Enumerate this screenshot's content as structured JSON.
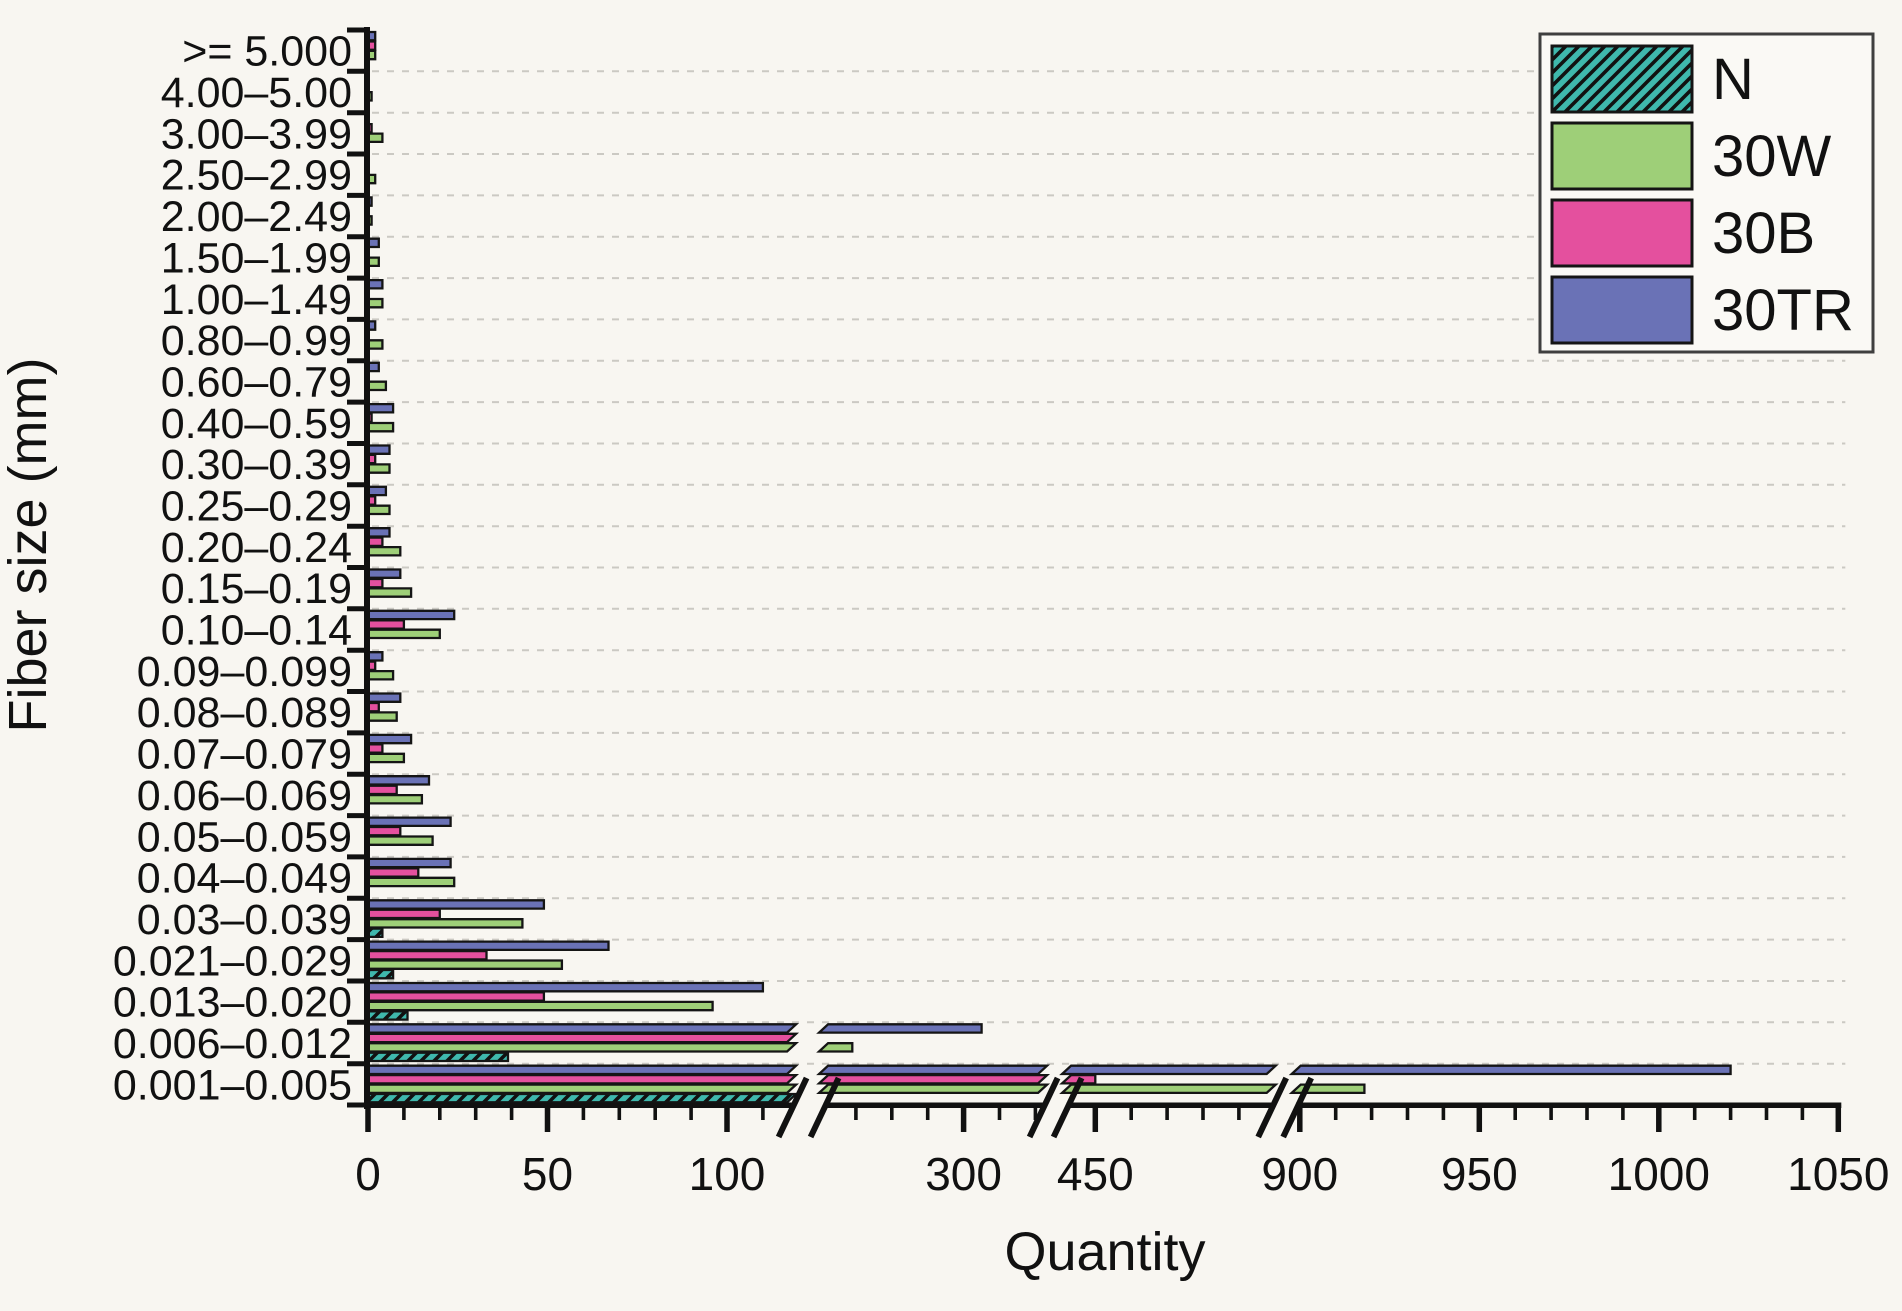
{
  "page": {
    "background": "#f8f6f1"
  },
  "styles": {
    "background": "#f8f6f1",
    "bar_stroke": "#151515",
    "axis_color": "#111111",
    "grid_color": "#cbc9c3",
    "text_color": "#111111",
    "legend_border": "#3f3f3f",
    "legend_fill": "#faf9f5"
  },
  "chart_data": {
    "type": "bar",
    "orientation": "horizontal",
    "xlabel": "Quantity",
    "ylabel": "Fiber size (mm)",
    "grid": "horizontal-dashed",
    "legend_position": "top-right",
    "categories": [
      ">= 5.000",
      "4.00–5.00",
      "3.00–3.99",
      "2.50–2.99",
      "2.00–2.49",
      "1.50–1.99",
      "1.00–1.49",
      "0.80–0.99",
      "0.60–0.79",
      "0.40–0.59",
      "0.30–0.39",
      "0.25–0.29",
      "0.20–0.24",
      "0.15–0.19",
      "0.10–0.14",
      "0.09–0.099",
      "0.08–0.089",
      "0.07–0.079",
      "0.06–0.069",
      "0.05–0.059",
      "0.04–0.049",
      "0.03–0.039",
      "0.021–0.029",
      "0.013–0.020",
      "0.006–0.012",
      "0.001–0.005"
    ],
    "series": [
      {
        "name": "N",
        "color": "#3fb8ad",
        "hatch": true,
        "values": [
          0,
          0,
          0,
          0,
          0,
          0,
          0,
          0,
          0,
          0,
          0,
          0,
          0,
          0,
          0,
          0,
          0,
          0,
          0,
          0,
          0,
          4,
          7,
          11,
          39,
          150
        ]
      },
      {
        "name": "30W",
        "color": "#9ecf78",
        "hatch": false,
        "values": [
          2,
          1,
          4,
          2,
          1,
          3,
          4,
          4,
          5,
          7,
          6,
          6,
          9,
          12,
          20,
          7,
          8,
          10,
          15,
          18,
          24,
          43,
          54,
          96,
          269,
          918
        ]
      },
      {
        "name": "30B",
        "color": "#e4509e",
        "hatch": false,
        "values": [
          2,
          0,
          1,
          0,
          0,
          0,
          0,
          0,
          0,
          1,
          2,
          2,
          4,
          4,
          10,
          2,
          3,
          4,
          8,
          9,
          14,
          20,
          33,
          49,
          150,
          450
        ]
      },
      {
        "name": "30TR",
        "color": "#6a72b6",
        "hatch": false,
        "values": [
          2,
          0,
          0,
          0,
          1,
          3,
          4,
          2,
          3,
          7,
          6,
          5,
          6,
          9,
          24,
          4,
          9,
          12,
          17,
          23,
          23,
          49,
          67,
          110,
          305,
          1020
        ]
      }
    ],
    "bar_order_top_to_bottom": [
      "30TR",
      "30B",
      "30W",
      "N"
    ],
    "legend_order": [
      "N",
      "30W",
      "30B",
      "30TR"
    ],
    "x_axis": {
      "segments": [
        {
          "range": [
            0,
            118
          ],
          "major_ticks": [
            0,
            50,
            100
          ]
        },
        {
          "range": [
            261,
            322
          ],
          "major_ticks": [
            300
          ]
        },
        {
          "range": [
            442,
            499
          ],
          "major_ticks": [
            450
          ]
        },
        {
          "range": [
            899,
            1050
          ],
          "major_ticks": [
            900,
            950,
            1000,
            1050
          ]
        }
      ],
      "minor_tick_step": 10,
      "breaks": 3
    }
  }
}
